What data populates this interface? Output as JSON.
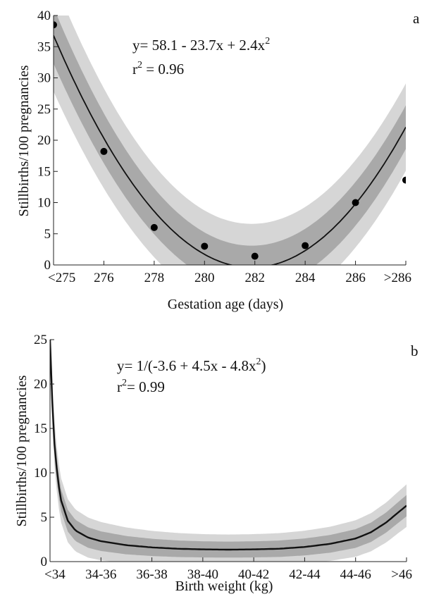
{
  "chart_data": [
    {
      "panel_label": "a",
      "type": "scatter",
      "xlabel": "Gestation age (days)",
      "ylabel": "Stillbirths/100 pregnancies",
      "x_categories": [
        "<275",
        "276",
        "278",
        "280",
        "282",
        "284",
        "286",
        ">286"
      ],
      "ylim": [
        0,
        40
      ],
      "yticks": [
        "0",
        "5",
        "10",
        "15",
        "20",
        "25",
        "30",
        "35",
        "40"
      ],
      "equation": {
        "prefix": "y= 58.1 - 23.7x + 2.4x",
        "sup": "2"
      },
      "r2": {
        "r": "r",
        "sup": "2",
        "rest": " = 0.96"
      },
      "points": [
        {
          "x": 1,
          "y": 38.5
        },
        {
          "x": 2,
          "y": 18.2
        },
        {
          "x": 3,
          "y": 6.0
        },
        {
          "x": 4,
          "y": 3.0
        },
        {
          "x": 5,
          "y": 1.4
        },
        {
          "x": 6,
          "y": 3.1
        },
        {
          "x": 7,
          "y": 10.0
        },
        {
          "x": 8,
          "y": 13.6
        }
      ],
      "fit": {
        "a": 58.1,
        "b": -23.7,
        "c": 2.4
      },
      "inner_band_halfwidth": [
        4.5,
        3.5,
        3.5
      ],
      "outer_band_halfwidth": [
        9.0,
        7.0,
        7.0
      ],
      "colors": {
        "inner_band": "#a9a9a9",
        "outer_band": "#d6d6d6",
        "line": "#111111",
        "points": "#000000"
      }
    },
    {
      "panel_label": "b",
      "type": "line",
      "xlabel": "Birth weight (kg)",
      "ylabel": "Stillbirths/100 pregnancies",
      "x_categories": [
        "<34",
        "34-36",
        "36-38",
        "38-40",
        "40-42",
        "42-44",
        "44-46",
        ">46"
      ],
      "ylim": [
        0,
        25
      ],
      "yticks": [
        "0",
        "5",
        "10",
        "15",
        "20",
        "25"
      ],
      "equation": {
        "prefix": "y= 1/(-3.6 + 4.5x - 4.8x",
        "sup": "2",
        "suffix": ")"
      },
      "r2": {
        "r": "r",
        "sup": "2",
        "rest": "= 0.99"
      },
      "curve": [
        {
          "x": 1.0,
          "y": 25.0
        },
        {
          "x": 1.05,
          "y": 17.0
        },
        {
          "x": 1.1,
          "y": 12.0
        },
        {
          "x": 1.2,
          "y": 7.2
        },
        {
          "x": 1.35,
          "y": 4.6
        },
        {
          "x": 1.5,
          "y": 3.5
        },
        {
          "x": 1.75,
          "y": 2.7
        },
        {
          "x": 2.0,
          "y": 2.3
        },
        {
          "x": 2.5,
          "y": 1.85
        },
        {
          "x": 3.0,
          "y": 1.6
        },
        {
          "x": 3.5,
          "y": 1.45
        },
        {
          "x": 4.0,
          "y": 1.38
        },
        {
          "x": 4.5,
          "y": 1.35
        },
        {
          "x": 5.0,
          "y": 1.38
        },
        {
          "x": 5.5,
          "y": 1.45
        },
        {
          "x": 6.0,
          "y": 1.65
        },
        {
          "x": 6.5,
          "y": 2.0
        },
        {
          "x": 7.0,
          "y": 2.6
        },
        {
          "x": 7.3,
          "y": 3.3
        },
        {
          "x": 7.6,
          "y": 4.4
        },
        {
          "x": 7.85,
          "y": 5.6
        },
        {
          "x": 8.0,
          "y": 6.3
        }
      ],
      "inner_band_halfwidth": [
        1.3,
        0.9,
        1.2
      ],
      "outer_band_halfwidth": [
        2.6,
        1.7,
        2.4
      ],
      "colors": {
        "inner_band": "#a9a9a9",
        "outer_band": "#d6d6d6",
        "line": "#111111"
      }
    }
  ]
}
